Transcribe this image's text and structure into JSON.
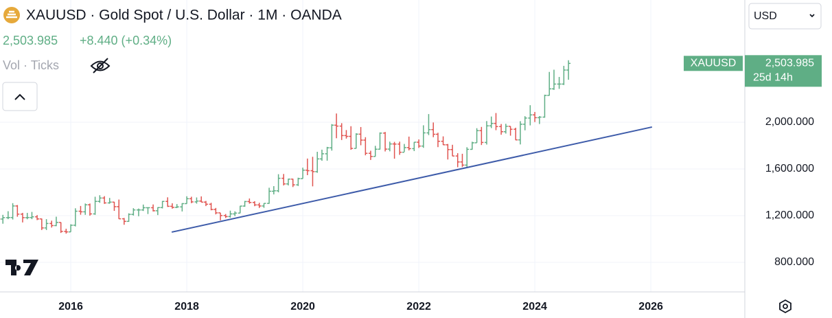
{
  "chart_data": {
    "type": "ohlc",
    "title": "XAUUSD · Gold Spot / U.S. Dollar · 1M · OANDA",
    "last_price": {
      "value": 2503.985,
      "label": "2,503.985"
    },
    "change": "+8.440 (+0.34%)",
    "indicator": "Vol · Ticks",
    "currency": "USD",
    "symbol": "XAUUSD",
    "countdown": "25d 14h",
    "up_color": "#5fae85",
    "down_color": "#e0534f",
    "grid": true,
    "xlim": [
      2014.78,
      2027.62
    ],
    "xticks": [
      2016,
      2018,
      2020,
      2022,
      2024,
      2026
    ],
    "ylim": [
      547,
      3047
    ],
    "yticks": [
      {
        "value": 800,
        "label": "800.000"
      },
      {
        "value": 1200,
        "label": "1,200.000"
      },
      {
        "value": 1600,
        "label": "1,600.000"
      },
      {
        "value": 2000,
        "label": "2,000.000"
      }
    ],
    "trendline": {
      "x": [
        2017.74,
        2026.02
      ],
      "y": [
        1059,
        1959
      ],
      "color": "#3d5ba9"
    },
    "x": [
      2014.75,
      2014.83,
      2014.92,
      2015,
      2015.08,
      2015.17,
      2015.25,
      2015.33,
      2015.42,
      2015.5,
      2015.58,
      2015.67,
      2015.75,
      2015.83,
      2015.92,
      2016,
      2016.08,
      2016.17,
      2016.25,
      2016.33,
      2016.42,
      2016.5,
      2016.58,
      2016.67,
      2016.75,
      2016.83,
      2016.92,
      2017,
      2017.08,
      2017.17,
      2017.25,
      2017.33,
      2017.42,
      2017.5,
      2017.58,
      2017.67,
      2017.75,
      2017.83,
      2017.92,
      2018,
      2018.08,
      2018.17,
      2018.25,
      2018.33,
      2018.42,
      2018.5,
      2018.58,
      2018.67,
      2018.75,
      2018.83,
      2018.92,
      2019,
      2019.08,
      2019.17,
      2019.25,
      2019.33,
      2019.42,
      2019.5,
      2019.58,
      2019.67,
      2019.75,
      2019.83,
      2019.92,
      2020,
      2020.08,
      2020.17,
      2020.25,
      2020.33,
      2020.42,
      2020.5,
      2020.58,
      2020.67,
      2020.75,
      2020.83,
      2020.92,
      2021,
      2021.08,
      2021.17,
      2021.25,
      2021.33,
      2021.42,
      2021.5,
      2021.58,
      2021.67,
      2021.75,
      2021.83,
      2021.92,
      2022,
      2022.08,
      2022.17,
      2022.25,
      2022.33,
      2022.42,
      2022.5,
      2022.58,
      2022.67,
      2022.75,
      2022.83,
      2022.92,
      2023,
      2023.08,
      2023.17,
      2023.25,
      2023.33,
      2023.42,
      2023.5,
      2023.58,
      2023.67,
      2023.75,
      2023.83,
      2023.92,
      2024,
      2024.08,
      2024.17,
      2024.25,
      2024.33,
      2024.42,
      2024.5,
      2024.58
    ],
    "open": [
      1211,
      1171,
      1183,
      1184,
      1283,
      1213,
      1183,
      1184,
      1190,
      1172,
      1095,
      1133,
      1115,
      1142,
      1065,
      1061,
      1118,
      1238,
      1233,
      1293,
      1215,
      1322,
      1351,
      1309,
      1316,
      1277,
      1173,
      1151,
      1211,
      1249,
      1249,
      1268,
      1268,
      1242,
      1269,
      1322,
      1280,
      1271,
      1275,
      1303,
      1345,
      1318,
      1325,
      1316,
      1298,
      1253,
      1224,
      1201,
      1192,
      1215,
      1222,
      1282,
      1321,
      1313,
      1292,
      1283,
      1305,
      1409,
      1413,
      1520,
      1472,
      1513,
      1464,
      1517,
      1589,
      1585,
      1577,
      1686,
      1730,
      1781,
      1975,
      1967,
      1886,
      1879,
      1776,
      1898,
      1847,
      1734,
      1707,
      1769,
      1907,
      1770,
      1814,
      1813,
      1743,
      1783,
      1774,
      1829,
      1796,
      1909,
      1937,
      1897,
      1837,
      1807,
      1766,
      1711,
      1660,
      1633,
      1768,
      1824,
      1928,
      1827,
      1969,
      1990,
      1963,
      1919,
      1965,
      1940,
      1849,
      1983,
      2036,
      2063,
      2039,
      2044,
      2230,
      2286,
      2327,
      2327,
      2447
    ],
    "high": [
      1255,
      1207,
      1238,
      1307,
      1291,
      1224,
      1224,
      1232,
      1205,
      1175,
      1170,
      1157,
      1191,
      1143,
      1088,
      1126,
      1263,
      1283,
      1304,
      1304,
      1362,
      1375,
      1367,
      1352,
      1318,
      1338,
      1180,
      1220,
      1264,
      1261,
      1295,
      1270,
      1296,
      1272,
      1326,
      1357,
      1306,
      1299,
      1307,
      1366,
      1362,
      1356,
      1365,
      1326,
      1310,
      1266,
      1224,
      1214,
      1243,
      1237,
      1284,
      1326,
      1347,
      1324,
      1310,
      1306,
      1439,
      1453,
      1555,
      1557,
      1517,
      1516,
      1525,
      1611,
      1689,
      1704,
      1747,
      1765,
      1789,
      1984,
      2075,
      1992,
      1933,
      1966,
      1906,
      1959,
      1872,
      1756,
      1798,
      1913,
      1917,
      1834,
      1832,
      1834,
      1814,
      1877,
      1831,
      1853,
      1974,
      2070,
      1998,
      1910,
      1879,
      1814,
      1807,
      1735,
      1730,
      1786,
      1833,
      1949,
      1960,
      2010,
      2049,
      2079,
      1985,
      1987,
      1966,
      1953,
      2009,
      2052,
      2146,
      2088,
      2053,
      2236,
      2431,
      2450,
      2388,
      2483,
      2531
    ],
    "low": [
      1131,
      1131,
      1170,
      1167,
      1191,
      1142,
      1169,
      1170,
      1162,
      1077,
      1077,
      1098,
      1110,
      1052,
      1046,
      1061,
      1108,
      1208,
      1207,
      1200,
      1207,
      1310,
      1301,
      1302,
      1241,
      1171,
      1122,
      1147,
      1201,
      1195,
      1240,
      1214,
      1236,
      1205,
      1262,
      1275,
      1260,
      1265,
      1236,
      1302,
      1307,
      1303,
      1315,
      1282,
      1246,
      1211,
      1160,
      1180,
      1183,
      1196,
      1221,
      1276,
      1303,
      1281,
      1266,
      1267,
      1302,
      1382,
      1400,
      1459,
      1459,
      1445,
      1454,
      1517,
      1547,
      1451,
      1567,
      1670,
      1671,
      1757,
      1863,
      1848,
      1860,
      1764,
      1775,
      1803,
      1717,
      1677,
      1706,
      1766,
      1750,
      1751,
      1688,
      1721,
      1746,
      1759,
      1753,
      1780,
      1781,
      1890,
      1872,
      1787,
      1805,
      1681,
      1709,
      1615,
      1617,
      1616,
      1765,
      1824,
      1805,
      1809,
      1950,
      1932,
      1893,
      1903,
      1885,
      1846,
      1810,
      1931,
      1973,
      2002,
      1985,
      2039,
      2228,
      2277,
      2286,
      2319,
      2364
    ],
    "close": [
      1171,
      1183,
      1184,
      1283,
      1213,
      1183,
      1184,
      1190,
      1172,
      1095,
      1133,
      1115,
      1142,
      1065,
      1061,
      1118,
      1238,
      1233,
      1293,
      1215,
      1322,
      1351,
      1309,
      1316,
      1277,
      1173,
      1151,
      1211,
      1249,
      1249,
      1268,
      1268,
      1242,
      1269,
      1322,
      1280,
      1271,
      1275,
      1303,
      1345,
      1318,
      1325,
      1316,
      1298,
      1253,
      1224,
      1201,
      1192,
      1215,
      1222,
      1282,
      1321,
      1313,
      1292,
      1283,
      1305,
      1409,
      1413,
      1520,
      1472,
      1513,
      1464,
      1517,
      1589,
      1585,
      1577,
      1686,
      1730,
      1781,
      1975,
      1967,
      1886,
      1879,
      1776,
      1898,
      1847,
      1734,
      1707,
      1769,
      1907,
      1770,
      1814,
      1813,
      1743,
      1783,
      1774,
      1829,
      1796,
      1909,
      1937,
      1897,
      1837,
      1807,
      1766,
      1711,
      1660,
      1633,
      1768,
      1824,
      1928,
      1827,
      1969,
      1990,
      1963,
      1919,
      1965,
      1940,
      1849,
      1983,
      2036,
      2063,
      2039,
      2044,
      2230,
      2286,
      2327,
      2327,
      2447,
      2503.985
    ]
  }
}
